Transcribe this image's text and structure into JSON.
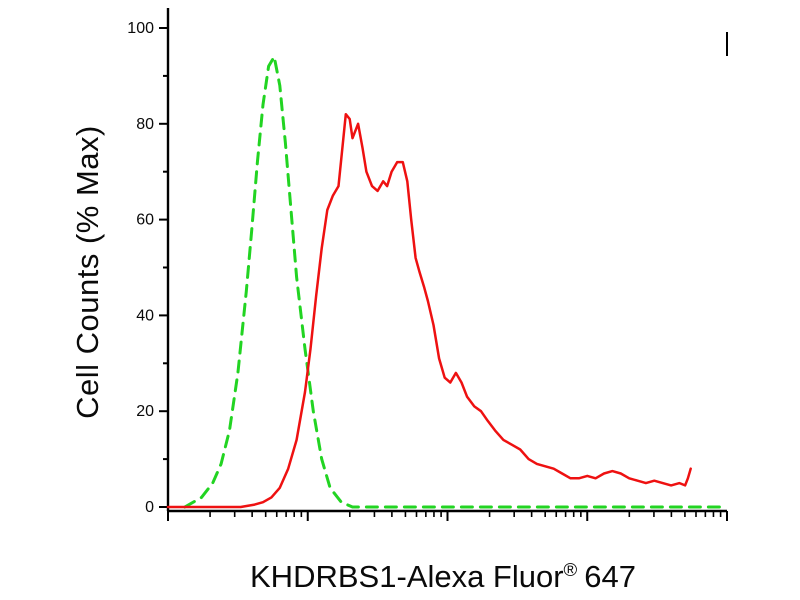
{
  "chart_data": {
    "type": "line",
    "title": "",
    "ylabel": "Cell Counts (% Max)",
    "xlabel": {
      "main": "KHDRBS1-Alexa Fluor",
      "sup": "®",
      "suffix": "647"
    },
    "ylim": [
      0,
      100
    ],
    "yticks": [
      0,
      20,
      40,
      60,
      80,
      100
    ],
    "y_minor_step": 10,
    "x_scale": "log",
    "x_decades": 4,
    "x_tick_labels": [],
    "grid": "off",
    "legend": "none",
    "axis_color": "#000000",
    "series": [
      {
        "id": "green-dashed",
        "style": "dashed",
        "color": "#22d422",
        "width": 3,
        "points": [
          [
            0.03,
            0
          ],
          [
            0.06,
            2
          ],
          [
            0.08,
            5
          ],
          [
            0.095,
            9
          ],
          [
            0.11,
            16
          ],
          [
            0.125,
            28
          ],
          [
            0.14,
            45
          ],
          [
            0.15,
            58
          ],
          [
            0.16,
            72
          ],
          [
            0.17,
            84
          ],
          [
            0.18,
            92
          ],
          [
            0.19,
            94
          ],
          [
            0.2,
            88
          ],
          [
            0.21,
            76
          ],
          [
            0.22,
            62
          ],
          [
            0.23,
            48
          ],
          [
            0.245,
            33
          ],
          [
            0.26,
            20
          ],
          [
            0.275,
            10
          ],
          [
            0.29,
            4
          ],
          [
            0.31,
            1
          ],
          [
            0.33,
            0
          ],
          [
            0.5,
            0
          ],
          [
            0.7,
            0
          ],
          [
            0.9,
            0
          ],
          [
            1.0,
            0
          ]
        ]
      },
      {
        "id": "red-solid",
        "style": "solid",
        "color": "#ee1111",
        "width": 2.5,
        "points": [
          [
            0.0,
            0
          ],
          [
            0.13,
            0
          ],
          [
            0.155,
            0.5
          ],
          [
            0.17,
            1
          ],
          [
            0.185,
            2
          ],
          [
            0.2,
            4
          ],
          [
            0.215,
            8
          ],
          [
            0.23,
            14
          ],
          [
            0.245,
            24
          ],
          [
            0.255,
            33
          ],
          [
            0.265,
            44
          ],
          [
            0.275,
            54
          ],
          [
            0.285,
            62
          ],
          [
            0.295,
            65
          ],
          [
            0.305,
            67
          ],
          [
            0.312,
            75
          ],
          [
            0.318,
            82
          ],
          [
            0.325,
            81
          ],
          [
            0.33,
            77
          ],
          [
            0.34,
            80
          ],
          [
            0.348,
            75
          ],
          [
            0.355,
            70
          ],
          [
            0.365,
            67
          ],
          [
            0.375,
            66
          ],
          [
            0.385,
            68
          ],
          [
            0.392,
            67
          ],
          [
            0.4,
            70
          ],
          [
            0.41,
            72
          ],
          [
            0.42,
            72
          ],
          [
            0.428,
            68
          ],
          [
            0.435,
            60
          ],
          [
            0.443,
            52
          ],
          [
            0.45,
            49
          ],
          [
            0.458,
            46
          ],
          [
            0.465,
            43
          ],
          [
            0.475,
            38
          ],
          [
            0.485,
            31
          ],
          [
            0.495,
            27
          ],
          [
            0.505,
            26
          ],
          [
            0.515,
            28
          ],
          [
            0.525,
            26
          ],
          [
            0.535,
            23
          ],
          [
            0.548,
            21
          ],
          [
            0.56,
            20
          ],
          [
            0.572,
            18
          ],
          [
            0.585,
            16
          ],
          [
            0.6,
            14
          ],
          [
            0.615,
            13
          ],
          [
            0.63,
            12
          ],
          [
            0.645,
            10
          ],
          [
            0.66,
            9
          ],
          [
            0.675,
            8.5
          ],
          [
            0.69,
            8
          ],
          [
            0.705,
            7
          ],
          [
            0.72,
            6
          ],
          [
            0.735,
            6
          ],
          [
            0.75,
            6.5
          ],
          [
            0.765,
            6
          ],
          [
            0.78,
            7
          ],
          [
            0.795,
            7.5
          ],
          [
            0.81,
            7
          ],
          [
            0.825,
            6
          ],
          [
            0.84,
            5.5
          ],
          [
            0.855,
            5
          ],
          [
            0.87,
            5.5
          ],
          [
            0.885,
            5
          ],
          [
            0.9,
            4.5
          ],
          [
            0.915,
            5
          ],
          [
            0.925,
            4.5
          ],
          [
            0.93,
            6
          ],
          [
            0.935,
            8
          ]
        ]
      }
    ]
  }
}
